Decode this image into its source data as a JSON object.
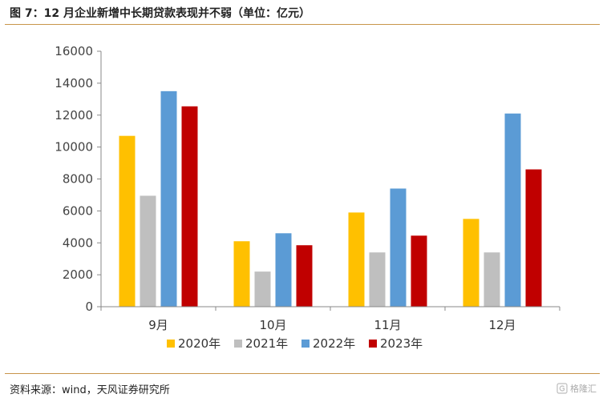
{
  "header": {
    "title": "图 7：12 月企业新增中长期贷款表现并不弱（单位：亿元）"
  },
  "footer": {
    "source": "资料来源：wind，天风证券研究所"
  },
  "watermark": {
    "text": "格隆汇"
  },
  "chart_data": {
    "type": "bar",
    "categories": [
      "9月",
      "10月",
      "11月",
      "12月"
    ],
    "series": [
      {
        "name": "2020年",
        "color": "#ffc000",
        "values": [
          10700,
          4100,
          5900,
          5500
        ]
      },
      {
        "name": "2021年",
        "color": "#bfbfbf",
        "values": [
          6950,
          2200,
          3400,
          3400
        ]
      },
      {
        "name": "2022年",
        "color": "#5b9bd5",
        "values": [
          13500,
          4600,
          7400,
          12100
        ]
      },
      {
        "name": "2023年",
        "color": "#c00000",
        "values": [
          12550,
          3850,
          4450,
          8600
        ]
      }
    ],
    "ylim": [
      0,
      16000
    ],
    "yticks": [
      0,
      2000,
      4000,
      6000,
      8000,
      10000,
      12000,
      14000,
      16000
    ],
    "legend": "bottom",
    "grid": false
  }
}
